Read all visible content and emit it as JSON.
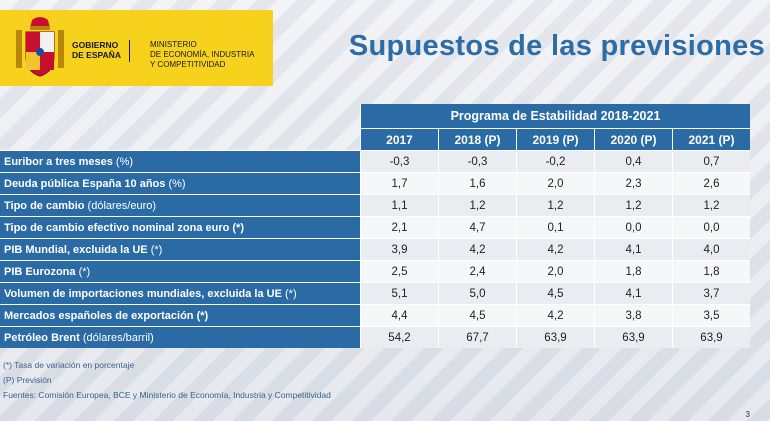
{
  "header": {
    "gov_line1": "GOBIERNO",
    "gov_line2": "DE ESPAÑA",
    "ministry_line1": "MINISTERIO",
    "ministry_line2": "DE ECONOMÍA, INDUSTRIA",
    "ministry_line3": "Y COMPETITIVIDAD",
    "title": "Supuestos de las previsiones",
    "logo_color": "#f7d21c",
    "accent_color": "#2a6aa5"
  },
  "table": {
    "group_header": "Programa de Estabilidad 2018-2021",
    "years": [
      "2017",
      "2018 (P)",
      "2019 (P)",
      "2020 (P)",
      "2021 (P)"
    ],
    "rows": [
      {
        "label": "Euribor a tres meses",
        "suffix": " (%)",
        "values": [
          "-0,3",
          "-0,3",
          "-0,2",
          "0,4",
          "0,7"
        ]
      },
      {
        "label": "Deuda pública España 10 años",
        "suffix": " (%)",
        "values": [
          "1,7",
          "1,6",
          "2,0",
          "2,3",
          "2,6"
        ]
      },
      {
        "label": "Tipo de cambio",
        "suffix": " (dólares/euro)",
        "values": [
          "1,1",
          "1,2",
          "1,2",
          "1,2",
          "1,2"
        ]
      },
      {
        "label": "Tipo de cambio efectivo nominal zona euro (*)",
        "suffix": "",
        "values": [
          "2,1",
          "4,7",
          "0,1",
          "0,0",
          "0,0"
        ]
      },
      {
        "label": "PIB Mundial, excluida la UE",
        "suffix": " (*)",
        "values": [
          "3,9",
          "4,2",
          "4,2",
          "4,1",
          "4,0"
        ]
      },
      {
        "label": "PIB Eurozona",
        "suffix": " (*)",
        "values": [
          "2,5",
          "2,4",
          "2,0",
          "1,8",
          "1,8"
        ]
      },
      {
        "label": "Volumen de importaciones mundiales, excluida la UE",
        "suffix": " (*)",
        "values": [
          "5,1",
          "5,0",
          "4,5",
          "4,1",
          "3,7"
        ]
      },
      {
        "label": "Mercados españoles de exportación (*)",
        "suffix": "",
        "values": [
          "4,4",
          "4,5",
          "4,2",
          "3,8",
          "3,5"
        ]
      },
      {
        "label": "Petróleo Brent",
        "suffix": " (dólares/barril)",
        "values": [
          "54,2",
          "67,7",
          "63,9",
          "63,9",
          "63,9"
        ]
      }
    ]
  },
  "notes": {
    "note1": "(*) Tasa de variación en porcentaje",
    "note2": "(P) Previsión",
    "sources": "Fuentes: Comisión Europea, BCE y Ministerio de Economía, Industria y Competitividad"
  },
  "page_number": "3"
}
